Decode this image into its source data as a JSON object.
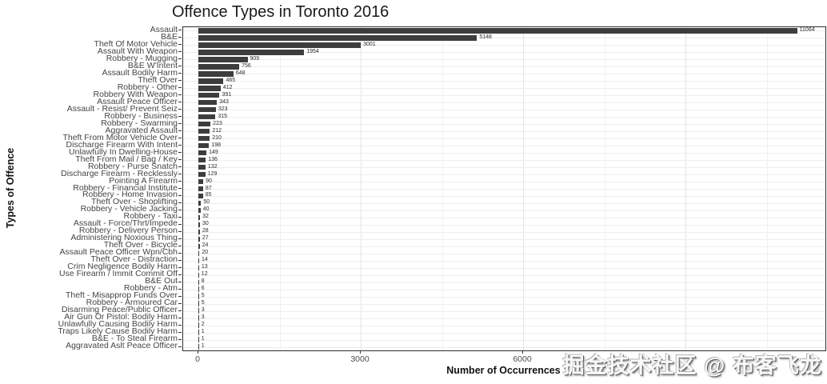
{
  "chart_data": {
    "type": "bar",
    "orientation": "horizontal",
    "title": "Offence Types in Toronto 2016",
    "xlabel": "Number of Occurrences",
    "ylabel": "Types of Offence",
    "categories": [
      "Assault",
      "B&E",
      "Theft Of Motor Vehicle",
      "Assault With Weapon",
      "Robbery - Mugging",
      "B&E W'Intent",
      "Assault Bodily Harm",
      "Theft Over",
      "Robbery - Other",
      "Robbery With Weapon",
      "Assault Peace Officer",
      "Assault - Resist/ Prevent Seiz",
      "Robbery - Business",
      "Robbery - Swarming",
      "Aggravated Assault",
      "Theft From Motor Vehicle Over",
      "Discharge Firearm With Intent",
      "Unlawfully In Dwelling-House",
      "Theft From Mail / Bag / Key",
      "Robbery - Purse Snatch",
      "Discharge Firearm - Recklessly",
      "Pointing A Firearm",
      "Robbery - Financial Institute",
      "Robbery - Home Invasion",
      "Theft Over - Shoplifting",
      "Robbery - Vehicle Jacking",
      "Robbery - Taxi",
      "Assault - Force/Thrt/Impede",
      "Robbery - Delivery Person",
      "Administering Noxious Thing",
      "Theft Over - Bicycle",
      "Assault Peace Officer Wpn/Cbh",
      "Theft Over - Distraction",
      "Crim Negligence Bodily Harm",
      "Use Firearm / Immit Commit Off",
      "B&E Out",
      "Robbery - Atm",
      "Theft - Misapprop Funds Over",
      "Robbery - Armoured Car",
      "Disarming Peace/Public Officer",
      "Air Gun Or Pistol: Bodily Harm",
      "Unlawfully Causing Bodily Harm",
      "Traps Likely Cause Bodily Harm",
      "B&E - To Steal Firearm",
      "Aggravated Aslt Peace Officer"
    ],
    "values": [
      11064,
      5148,
      3001,
      1954,
      909,
      756,
      648,
      465,
      412,
      391,
      343,
      323,
      315,
      223,
      212,
      210,
      198,
      149,
      136,
      132,
      129,
      90,
      87,
      85,
      50,
      40,
      32,
      30,
      28,
      27,
      24,
      20,
      14,
      13,
      12,
      8,
      6,
      5,
      5,
      3,
      3,
      2,
      1,
      1,
      1
    ],
    "value_labels_shown": true,
    "xlim": [
      0,
      11600
    ],
    "x_ticks": [
      0,
      3000,
      6000
    ],
    "x_major_gridlines": [
      0,
      3000,
      6000,
      9000
    ],
    "x_minor_gridlines": [
      1500,
      4500,
      7500,
      10500
    ],
    "grid": true,
    "legend": false,
    "bar_color": "#3d3d3d"
  },
  "watermark": {
    "text": "掘金技术社区 @ 布客飞龙"
  }
}
